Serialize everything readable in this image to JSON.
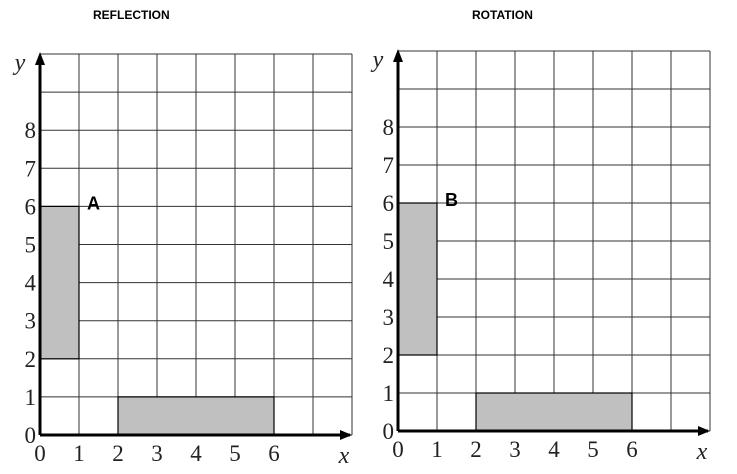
{
  "panels": [
    {
      "title": "REFLECTION",
      "shape_label": "A",
      "x_axis_label": "x",
      "y_axis_label": "y",
      "x_ticks": [
        "0",
        "1",
        "2",
        "3",
        "4",
        "5",
        "6"
      ],
      "y_ticks": [
        "0",
        "1",
        "2",
        "3",
        "4",
        "5",
        "6",
        "7",
        "8"
      ],
      "grid": {
        "columns": 8,
        "rows": 10
      },
      "shapes": [
        {
          "x1": 0,
          "y1": 2,
          "x2": 1,
          "y2": 6
        },
        {
          "x1": 2,
          "y1": 0,
          "x2": 6,
          "y2": 1
        }
      ],
      "label_at": [
        1,
        6
      ]
    },
    {
      "title": "ROTATION",
      "shape_label": "B",
      "x_axis_label": "x",
      "y_axis_label": "y",
      "x_ticks": [
        "0",
        "1",
        "2",
        "3",
        "4",
        "5",
        "6"
      ],
      "y_ticks": [
        "0",
        "1",
        "2",
        "3",
        "4",
        "5",
        "6",
        "7",
        "8"
      ],
      "grid": {
        "columns": 8,
        "rows": 10
      },
      "shapes": [
        {
          "x1": 0,
          "y1": 2,
          "x2": 1,
          "y2": 6
        },
        {
          "x1": 2,
          "y1": 0,
          "x2": 6,
          "y2": 1
        }
      ],
      "label_at": [
        1,
        6
      ]
    }
  ],
  "colors": {
    "shape_fill": "#c0c0c0",
    "grid": "#333333"
  }
}
